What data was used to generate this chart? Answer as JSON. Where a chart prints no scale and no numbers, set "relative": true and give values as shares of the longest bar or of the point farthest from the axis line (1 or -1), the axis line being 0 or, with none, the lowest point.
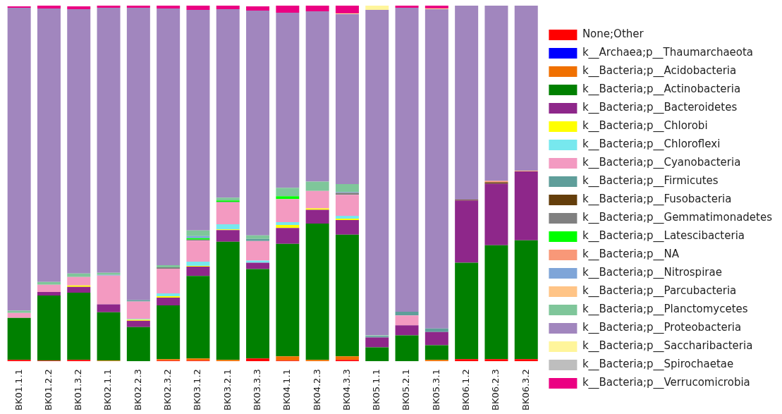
{
  "chart_data": {
    "type": "bar",
    "stacked": true,
    "relative": true,
    "legend": "right",
    "grid": false,
    "categories": [
      "BK01.1.1",
      "BK01.2.2",
      "BK01.3.2",
      "BK02.1.1",
      "BK02.2.3",
      "BK02.3.2",
      "BK03.1.2",
      "BK03.2.1",
      "BK03.3.3",
      "BK04.1.1",
      "BK04.2.3",
      "BK04.3.3",
      "BK05.1.1",
      "BK05.2.1",
      "BK05.3.1",
      "BK06.1.2",
      "BK06.2.3",
      "BK06.3.2"
    ],
    "series": [
      {
        "name": "None;Other",
        "color": "#ff0000",
        "values": [
          0.004,
          0.002,
          0.004,
          0,
          0,
          0.002,
          0.002,
          0,
          0.008,
          0.002,
          0,
          0.004,
          0,
          0,
          0,
          0.006,
          0.006,
          0.006
        ]
      },
      {
        "name": "k__Archaea;p__Thaumarchaeota",
        "color": "#0000ff",
        "values": [
          0,
          0,
          0,
          0,
          0,
          0,
          0,
          0,
          0,
          0,
          0,
          0,
          0,
          0,
          0,
          0,
          0,
          0
        ]
      },
      {
        "name": "k__Bacteria;p__Acidobacteria",
        "color": "#f07000",
        "values": [
          0,
          0,
          0,
          0.002,
          0,
          0.004,
          0.006,
          0.004,
          0,
          0.012,
          0.004,
          0.01,
          0,
          0,
          0.004,
          0,
          0,
          0
        ]
      },
      {
        "name": "k__Bacteria;p__Actinobacteria",
        "color": "#008000",
        "values": [
          0.118,
          0.183,
          0.189,
          0.136,
          0.096,
          0.151,
          0.232,
          0.332,
          0.251,
          0.316,
          0.383,
          0.342,
          0.039,
          0.073,
          0.041,
          0.271,
          0.32,
          0.334
        ]
      },
      {
        "name": "k__Bacteria;p__Bacteroidetes",
        "color": "#8e278a",
        "values": [
          null,
          0.01,
          0.016,
          0.022,
          0.018,
          0.022,
          0.026,
          0.033,
          0.018,
          0.045,
          0.039,
          0.041,
          0.028,
          0.028,
          0.037,
          0.175,
          0.173,
          0.194
        ]
      },
      {
        "name": "k__Bacteria;p__Chlorobi",
        "color": "#ffff00",
        "values": [
          0,
          0,
          0.004,
          0,
          0.003,
          0.004,
          0.002,
          0.002,
          null,
          0.008,
          0.004,
          0.004,
          0,
          0,
          0,
          0,
          0,
          0
        ]
      },
      {
        "name": "k__Bacteria;p__Chloroflexi",
        "color": "#77e8ee",
        "values": [
          0,
          0,
          0,
          0,
          0.002,
          0.008,
          0.012,
          0.014,
          0.006,
          0.008,
          0,
          0.008,
          0,
          0,
          0,
          0,
          0,
          0
        ]
      },
      {
        "name": "k__Bacteria;p__Cyanobacteria",
        "color": "#f39ac1",
        "values": [
          0.014,
          0.02,
          0.024,
          0.081,
          0.049,
          0.069,
          0.059,
          0.061,
          0.055,
          0.065,
          0.049,
          0.059,
          0,
          0.028,
          0,
          0,
          0,
          0
        ]
      },
      {
        "name": "k__Bacteria;p__Firmicutes",
        "color": "#5f9e9a",
        "values": [
          0,
          0,
          0,
          0,
          0.004,
          0,
          0,
          0,
          0.006,
          0,
          0,
          0,
          0.004,
          0.01,
          0.01,
          0,
          0,
          0
        ]
      },
      {
        "name": "k__Bacteria;p__Fusobacteria",
        "color": "#643e0b",
        "values": [
          0,
          0,
          0,
          0,
          0,
          0,
          0,
          0,
          0,
          0,
          0,
          0,
          0,
          0,
          0,
          0.002,
          0.004,
          0
        ]
      },
      {
        "name": "k__Bacteria;p__Gemmatimonadetes",
        "color": "#808080",
        "values": [
          0,
          0,
          null,
          0,
          0,
          0.004,
          0.003,
          0.002,
          0,
          0,
          0,
          0.006,
          0,
          0,
          0,
          0,
          0,
          0
        ]
      },
      {
        "name": "k__Bacteria;p__Latescibacteria",
        "color": "#00ff00",
        "values": [
          0,
          0,
          0,
          0,
          0,
          0,
          0.004,
          0.004,
          0,
          0.008,
          0,
          0,
          0,
          0,
          0,
          0,
          0,
          0
        ]
      },
      {
        "name": "k__Bacteria;p__NA",
        "color": "#f99878",
        "values": [
          0,
          0,
          0,
          0,
          0,
          0,
          0,
          0,
          0,
          0,
          0,
          0,
          0,
          0,
          0,
          0,
          0.004,
          0
        ]
      },
      {
        "name": "k__Bacteria;p__Nitrospirae",
        "color": "#7fa5d8",
        "values": [
          0,
          0,
          0,
          0.002,
          0,
          0,
          0.006,
          0,
          0,
          0,
          0,
          0.002,
          0,
          0,
          0,
          0,
          0,
          0
        ]
      },
      {
        "name": "k__Bacteria;p__Parcubacteria",
        "color": "#ffc486",
        "values": [
          0,
          0,
          0,
          0,
          0,
          0,
          0,
          0,
          0,
          0,
          0,
          0,
          0,
          0,
          0,
          0,
          0,
          0.002
        ]
      },
      {
        "name": "k__Bacteria;p__Planctomycetes",
        "color": "#7fc69a",
        "values": [
          0.006,
          0.008,
          0.01,
          0.006,
          0,
          0.006,
          0.016,
          0.008,
          0.01,
          0.024,
          0.026,
          0.022,
          0.002,
          0,
          0,
          0,
          0,
          0
        ]
      },
      {
        "name": "k__Bacteria;p__Proteobacteria",
        "color": "#a186be",
        "values": [
          0.852,
          0.769,
          0.743,
          0.745,
          0.822,
          0.722,
          0.62,
          0.53,
          0.632,
          0.492,
          0.479,
          0.478,
          0.915,
          0.855,
          0.898,
          0.546,
          0.493,
          0.464
        ]
      },
      {
        "name": "k__Bacteria;p__Saccharibacteria",
        "color": "#fff59b",
        "values": [
          0,
          0,
          0,
          0,
          0,
          0,
          0,
          0,
          0,
          0,
          0,
          0.002,
          0.012,
          0,
          0.002,
          0,
          0,
          0
        ]
      },
      {
        "name": "k__Bacteria;p__Spirochaetae",
        "color": "#bebebe",
        "values": [
          0,
          0,
          0,
          0,
          0,
          0,
          0,
          0,
          0,
          0,
          0,
          0,
          0,
          0,
          0,
          0,
          0,
          0
        ]
      },
      {
        "name": "k__Bacteria;p__Verrucomicrobia",
        "color": "#eb0082",
        "values": [
          0.004,
          0.008,
          0.008,
          0.006,
          0.006,
          0.008,
          0.012,
          0.01,
          0.012,
          0.02,
          0.016,
          0.022,
          0,
          0.006,
          0.008,
          0,
          0,
          0
        ]
      }
    ]
  }
}
